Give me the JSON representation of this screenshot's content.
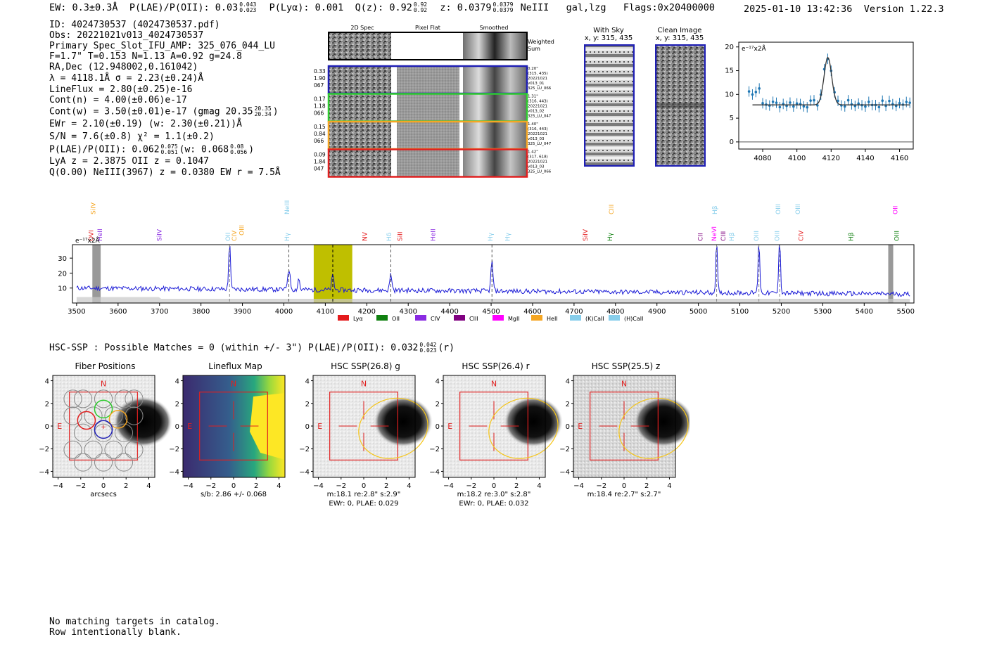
{
  "header": {
    "ew_label": "EW: 0.3±0.3Å",
    "plae_label": "P(LAE)/P(OII):",
    "plae_val": "0.03",
    "plae_hi": "0.043",
    "plae_lo": "0.023",
    "plya_label": "P(Lyα): 0.001",
    "qz_label": "Q(z): 0.92",
    "qz_hi": "0.92",
    "qz_lo": "0.92",
    "z_label": "z: 0.0379",
    "z_hi": "0.0379",
    "z_lo": "0.0379",
    "line_id": "NeIII",
    "classes": "gal,lzg",
    "flags": "Flags:0x20400000",
    "timestamp": "2025-01-10 13:42:36",
    "version": "Version 1.22.3"
  },
  "info": {
    "id": "ID: 4024730537 (4024730537.pdf)",
    "obs": "Obs: 20221021v013_4024730537",
    "primary": "Primary Spec_Slot_IFU_AMP: 325_076_044_LU",
    "fit": "F=1.7\"  T=0.153  N=1.13  A=0.92  g=24.8",
    "radec": "RA,Dec (12.948002,0.161042)",
    "lambda": "λ = 4118.1Å  σ = 2.23(±0.24)Å",
    "lineflux": "LineFlux = 2.80(±0.25)e-16",
    "contn": "Cont(n) = 4.00(±0.06)e-17",
    "contw": "Cont(w) = 3.50(±0.01)e-17 (gmag 20.35",
    "contw_hi": "20.35",
    "contw_lo": "20.34",
    "ewr": "EWr = 2.10(±0.19) (w: 2.30(±0.21))Å",
    "sn": "S/N = 7.6(±0.8)  χ² = 1.1(±0.2)",
    "plae": "P(LAE)/P(OII): 0.062",
    "plae_hi": "0.075",
    "plae_lo": "0.051",
    "plae_w": "(w: 0.068",
    "plae_w_hi": "0.08",
    "plae_w_lo": "0.056",
    "lya": "LyA z = 2.3875  OII z = 0.1047",
    "q": "Q(0.00) NeIII(3967) z = 0.0380  EW r = 7.5Å"
  },
  "cutouts": {
    "col_2d": "2D Spec",
    "col_flat": "Pixel Flat",
    "col_smooth": "Smoothed",
    "weighted": "Weighted",
    "sum": "Sum",
    "rows": [
      {
        "color": "#1f1fb4",
        "left": [
          "0.33",
          "1.90",
          "067"
        ],
        "right": [
          "0.20\"",
          "(315, 435)",
          "20221021",
          "v013_01",
          "325_LU_066"
        ]
      },
      {
        "color": "#2ecc2e",
        "left": [
          "0.17",
          "1.18",
          "066"
        ],
        "right": [
          "1.31\"",
          "(316, 443)",
          "20221021",
          "v013_02",
          "325_LU_047"
        ]
      },
      {
        "color": "#f5a623",
        "left": [
          "0.15",
          "0.84",
          "066"
        ],
        "right": [
          "1.40\"",
          "(316, 443)",
          "20221021",
          "v013_03",
          "325_LU_047"
        ]
      },
      {
        "color": "#e02020",
        "left": [
          "0.09",
          "1.84",
          "047"
        ],
        "right": [
          "1.42\"",
          "(317, 618)",
          "20221021",
          "v013_03",
          "325_LU_066"
        ]
      }
    ]
  },
  "sky": {
    "with_sky": "With Sky",
    "with_sky_xy": "x, y: 315, 435",
    "clean": "Clean Image",
    "clean_xy": "x, y: 315, 435"
  },
  "zoom_plot": {
    "units": "e⁻¹⁷x2Å",
    "yticks": [
      "0",
      "5",
      "10",
      "15",
      "20"
    ],
    "xticks": [
      "4080",
      "4100",
      "4120",
      "4140",
      "4160"
    ]
  },
  "spectrum": {
    "units": "e⁻¹⁷x2Å",
    "yticks": [
      "10",
      "20",
      "30"
    ],
    "xticks": [
      "3500",
      "3600",
      "3700",
      "3800",
      "3900",
      "4000",
      "4100",
      "4200",
      "4300",
      "4400",
      "4500",
      "4600",
      "4700",
      "4800",
      "4900",
      "5000",
      "5100",
      "5200",
      "5300",
      "5400",
      "5500"
    ],
    "legend": [
      {
        "label": "Lyα",
        "color": "#e41a1c"
      },
      {
        "label": "OII",
        "color": "#108010"
      },
      {
        "label": "CIV",
        "color": "#8a2be2"
      },
      {
        "label": "CIII",
        "color": "#800080"
      },
      {
        "label": "MgII",
        "color": "#ff00ff"
      },
      {
        "label": "HeII",
        "color": "#f5a623"
      },
      {
        "label": "(K)CaII",
        "color": "#87ceeb"
      },
      {
        "label": "(H)CaII",
        "color": "#87ceeb"
      }
    ],
    "line_labels": {
      "siiv_top": "SiIV",
      "ovi": "OVI",
      "heii_a": "HeII",
      "siiv_b": "SiIV",
      "oii_a": "OII",
      "civ_a": "CIV",
      "oiii_a": "OIII",
      "neiii": "NeIII",
      "hg_a": "Hγ",
      "nv": "NV",
      "hd": "Hδ",
      "siii": "SiII",
      "heii_b": "HeII",
      "hg_b": "Hγ",
      "hg_c": "Hγ",
      "siiv_c": "SiIV",
      "ciii_top": "CIII",
      "hg_d": "Hγ",
      "hb_top": "Hβ",
      "cii": "CII",
      "nevi": "NeVI",
      "ciii_b": "CIII",
      "hb_b": "Hβ",
      "oiii_b": "OIII",
      "oiii_c": "OIII",
      "oiii_top1": "OIII",
      "oiii_top2": "OIII",
      "civ_b": "CIV",
      "hb_c": "Hβ",
      "oii_top": "OII",
      "oiii_d": "OIII"
    }
  },
  "hsc": {
    "line": "HSC-SSP : Possible Matches = 0 (within +/- 3\")  P(LAE)/P(OII): 0.032",
    "line_hi": "0.042",
    "line_lo": "0.023",
    "line_band": "(r)",
    "panels": [
      {
        "title": "Fiber Positions",
        "cap1": "arcsecs",
        "cap2": ""
      },
      {
        "title": "Lineflux Map",
        "cap1": "s/b: 2.86 +/- 0.068",
        "cap2": ""
      },
      {
        "title": "HSC SSP(26.8) g",
        "cap1": "m:18.1  re:2.8\"  s:2.9\"",
        "cap2": "EWr: 0, PLAE: 0.029"
      },
      {
        "title": "HSC SSP(26.4) r",
        "cap1": "m:18.2  re:3.0\"  s:2.8\"",
        "cap2": "EWr: 0, PLAE: 0.032"
      },
      {
        "title": "HSC SSP(25.5) z",
        "cap1": "m:18.4  re:2.7\"  s:2.7\"",
        "cap2": ""
      }
    ],
    "n_label": "N",
    "e_label": "E",
    "ticks": [
      "4",
      "2",
      "0",
      "−2",
      "−4"
    ]
  },
  "footer": {
    "line1": "No matching targets in catalog.",
    "line2": "Row intentionally blank."
  }
}
